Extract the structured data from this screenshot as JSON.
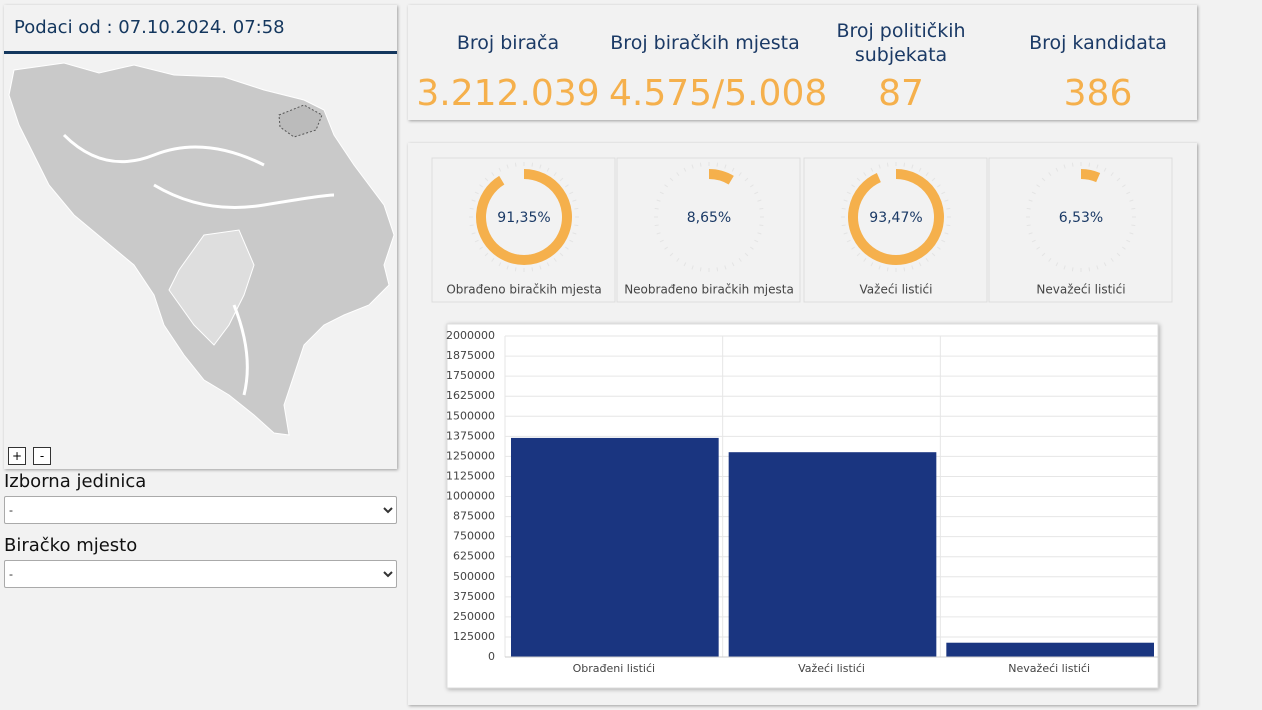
{
  "header": {
    "title": "Podaci od : 07.10.2024. 07:58"
  },
  "map_controls": {
    "zoom_in": "+",
    "zoom_out": "-"
  },
  "filters": [
    {
      "label": "Izborna jedinica",
      "value": "-"
    },
    {
      "label": "Biračko mjesto",
      "value": "-"
    }
  ],
  "stats": [
    {
      "label": "Broj birača",
      "value": "3.212.039"
    },
    {
      "label": "Broj biračkih mjesta",
      "value": "4.575/5.008"
    },
    {
      "label": "Broj političkih subjekata",
      "value": "87"
    },
    {
      "label": "Broj kandidata",
      "value": "386"
    }
  ],
  "chart_data": [
    {
      "type": "donut",
      "categories": [
        "Obrađeno biračkih mjesta"
      ],
      "values": [
        91.35
      ],
      "value_labels": [
        "91,35%"
      ],
      "ylim": [
        0,
        100
      ],
      "color": "#f5b04c"
    },
    {
      "type": "donut",
      "categories": [
        "Neobrađeno biračkih mjesta"
      ],
      "values": [
        8.65
      ],
      "value_labels": [
        "8,65%"
      ],
      "ylim": [
        0,
        100
      ],
      "color": "#f5b04c"
    },
    {
      "type": "donut",
      "categories": [
        "Važeći listići"
      ],
      "values": [
        93.47
      ],
      "value_labels": [
        "93,47%"
      ],
      "ylim": [
        0,
        100
      ],
      "color": "#f5b04c"
    },
    {
      "type": "donut",
      "categories": [
        "Nevažeći listići"
      ],
      "values": [
        6.53
      ],
      "value_labels": [
        "6,53%"
      ],
      "ylim": [
        0,
        100
      ],
      "color": "#f5b04c"
    },
    {
      "type": "bar",
      "categories": [
        "Obrađeni listići",
        "Važeći listići",
        "Nevažeći listići"
      ],
      "values": [
        1365000,
        1276000,
        89000
      ],
      "color": "#1a3580",
      "ylim": [
        0,
        2000000
      ],
      "yticks": [
        0,
        125000,
        250000,
        375000,
        500000,
        625000,
        750000,
        875000,
        1000000,
        1125000,
        1250000,
        1375000,
        1500000,
        1625000,
        1750000,
        1875000,
        2000000
      ],
      "grid": true
    }
  ]
}
